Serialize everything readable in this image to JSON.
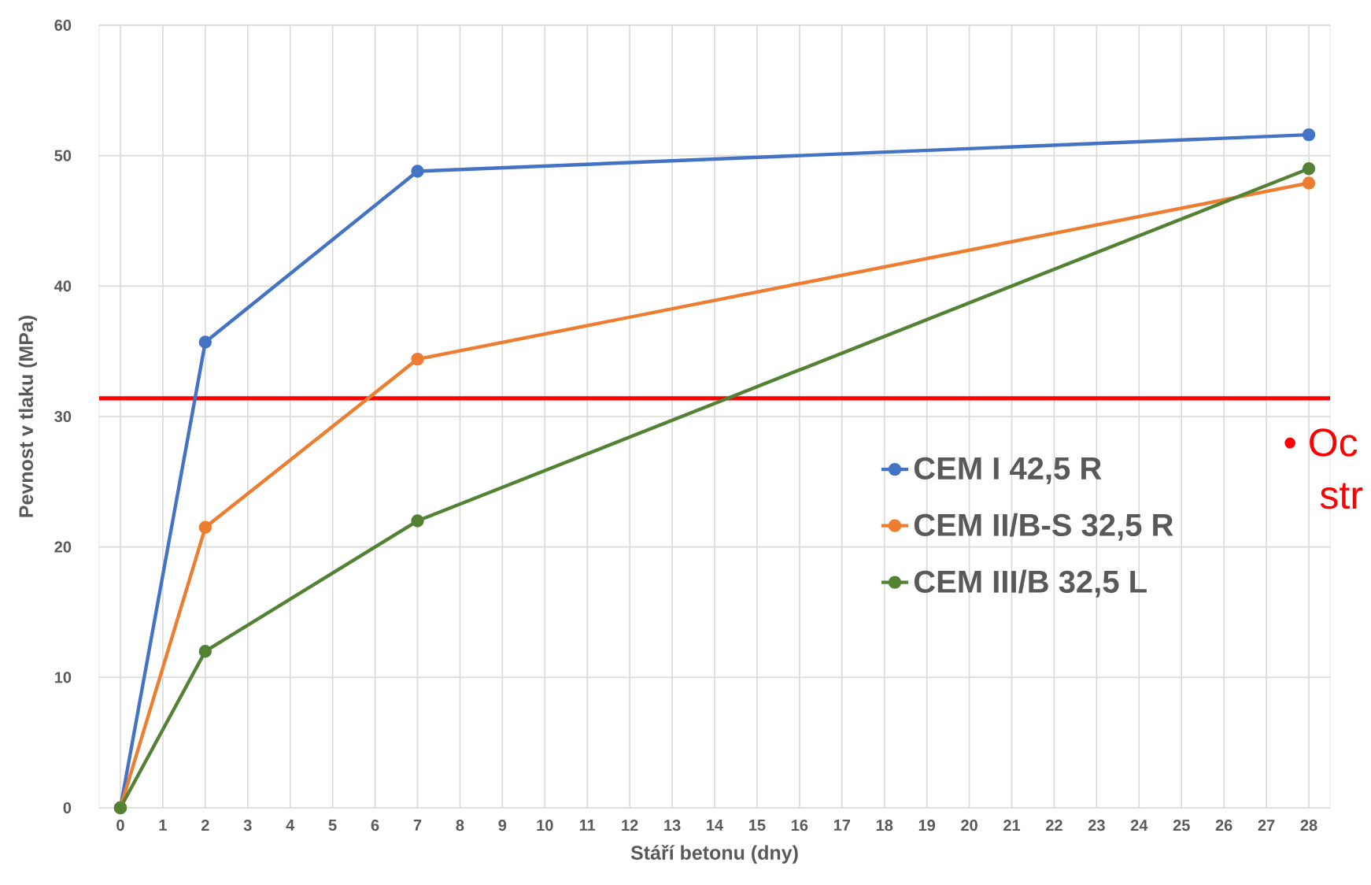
{
  "chart_data": {
    "type": "line",
    "xlabel": "Stáří betonu (dny)",
    "ylabel": "Pevnost v tlaku (MPa)",
    "xlim": [
      -0.5,
      28.5
    ],
    "xticks": [
      0,
      1,
      2,
      3,
      4,
      5,
      6,
      7,
      8,
      9,
      10,
      11,
      12,
      13,
      14,
      15,
      16,
      17,
      18,
      19,
      20,
      21,
      22,
      23,
      24,
      25,
      26,
      27,
      28
    ],
    "ylim": [
      0,
      60
    ],
    "yticks": [
      0,
      10,
      20,
      30,
      40,
      50,
      60
    ],
    "grid": true,
    "legend": "right",
    "marker": "circle",
    "series": [
      {
        "name": "CEM I 42,5 R",
        "color": "#4472c4",
        "x": [
          0,
          2,
          7,
          28
        ],
        "values": [
          0,
          35.7,
          48.8,
          51.6
        ]
      },
      {
        "name": "CEM II/B-S 32,5 R",
        "color": "#ed7d31",
        "x": [
          0,
          2,
          7,
          28
        ],
        "values": [
          0,
          21.5,
          34.4,
          47.9
        ]
      },
      {
        "name": "CEM III/B 32,5 L",
        "color": "#548235",
        "x": [
          0,
          2,
          7,
          28
        ],
        "values": [
          0,
          12,
          22,
          49
        ]
      }
    ],
    "ref_lines": [
      {
        "axis": "y",
        "value": 31.4,
        "color": "#ff0000"
      }
    ],
    "annotations": [
      "• Oc",
      "str"
    ]
  }
}
